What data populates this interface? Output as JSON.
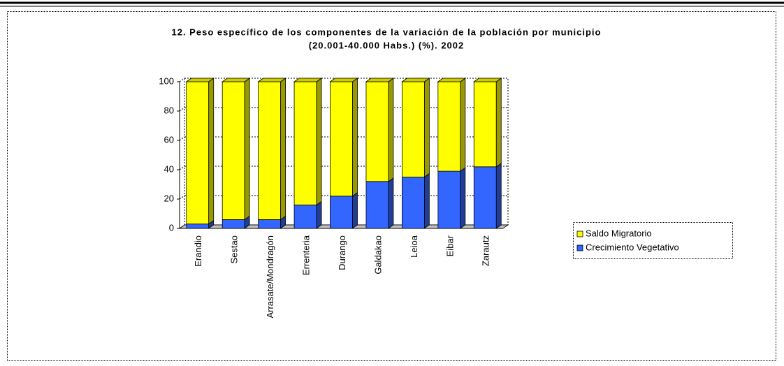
{
  "chart_data": {
    "type": "bar",
    "stacked": true,
    "title": "12. Peso específico de los componentes de la variación de la población por municipio",
    "subtitle": "(20.001-40.000 Habs.) (%). 2002",
    "categories": [
      "Erandio",
      "Sestao",
      "Arrasate/Mondragón",
      "Errenteria",
      "Durango",
      "Galdakao",
      "Leioa",
      "Eibar",
      "Zarautz"
    ],
    "series": [
      {
        "name": "Crecimiento Vegetativo",
        "color": "#3366ff",
        "values": [
          3,
          6,
          6,
          16,
          22,
          32,
          35,
          39,
          42
        ]
      },
      {
        "name": "Saldo Migratorio",
        "color": "#ffff00",
        "values": [
          97,
          94,
          94,
          84,
          78,
          68,
          65,
          61,
          58
        ]
      }
    ],
    "ylim": [
      0,
      100
    ],
    "yticks": [
      0,
      20,
      40,
      60,
      80,
      100
    ],
    "grid": true,
    "legend": "right"
  }
}
